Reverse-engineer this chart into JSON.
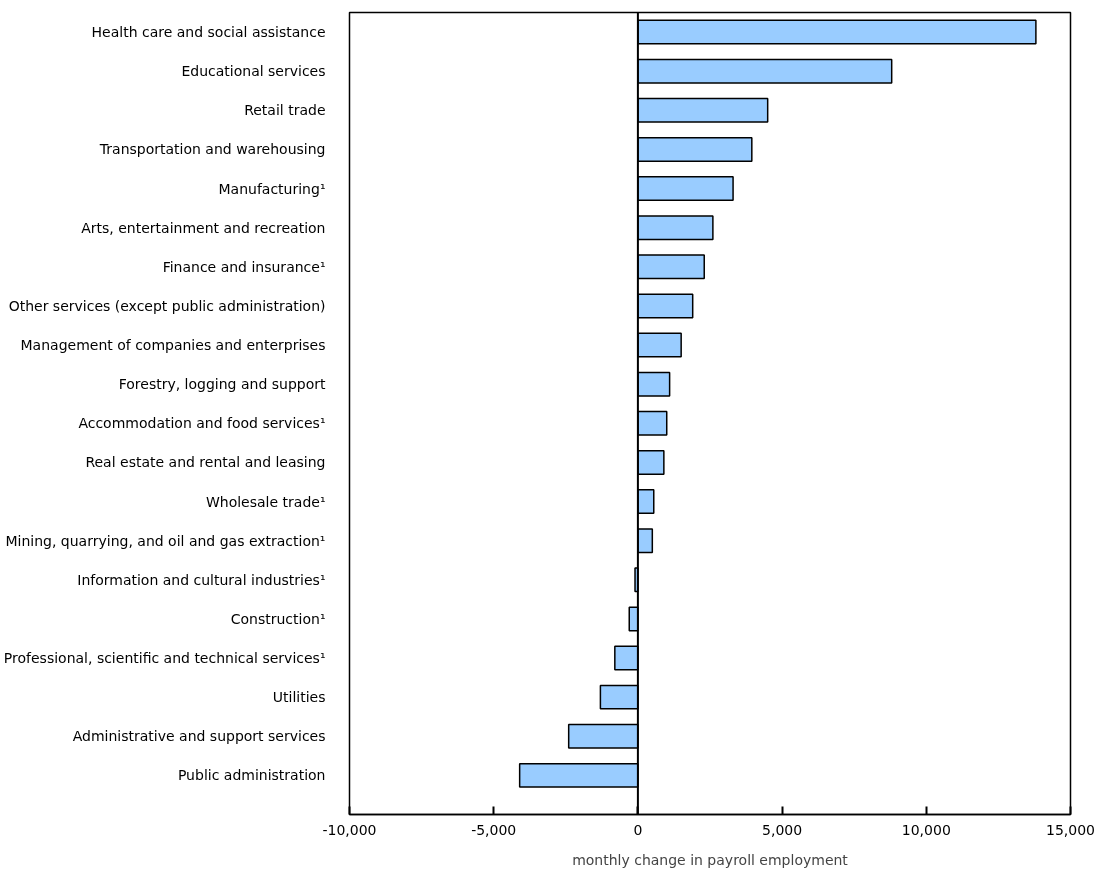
{
  "chart_data": {
    "type": "bar",
    "orientation": "horizontal",
    "xlabel": "monthly change in payroll employment",
    "categories": [
      "Health care and social assistance",
      "Educational services",
      "Retail trade",
      "Transportation and warehousing",
      "Manufacturing¹",
      "Arts, entertainment and recreation",
      "Finance and insurance¹",
      "Other services (except public administration)",
      "Management of companies and enterprises",
      "Forestry, logging and support",
      "Accommodation and food services¹",
      "Real estate and rental and leasing",
      "Wholesale trade¹",
      "Mining, quarrying, and oil and gas extraction¹",
      "Information and cultural industries¹",
      "Construction¹",
      "Professional, scientific and technical services¹",
      "Utilities",
      "Administrative and support services",
      "Public administration"
    ],
    "values": [
      13800,
      8800,
      4500,
      3950,
      3300,
      2600,
      2300,
      1900,
      1500,
      1100,
      1000,
      900,
      550,
      500,
      -100,
      -300,
      -800,
      -1300,
      -2400,
      -4100
    ],
    "color": "#99ccff",
    "xlim": [
      -10000,
      15000
    ],
    "xticks": [
      {
        "value": -10000,
        "label": "-10,000"
      },
      {
        "value": -5000,
        "label": "-5,000"
      },
      0,
      {
        "value": 5000,
        "label": "5,000"
      },
      {
        "value": 10000,
        "label": "10,000"
      },
      {
        "value": 15000,
        "label": "15,000"
      }
    ],
    "ref_lines": [
      {
        "axis": "x",
        "value": 0,
        "color": "#000000"
      }
    ]
  }
}
